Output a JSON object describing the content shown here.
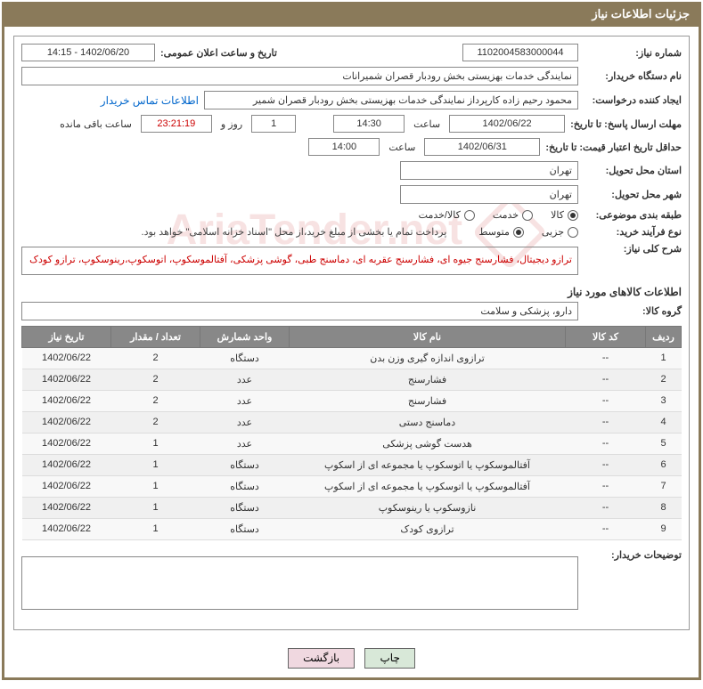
{
  "header": {
    "title": "جزئیات اطلاعات نیاز"
  },
  "labels": {
    "need_number": "شماره نیاز:",
    "announce_datetime": "تاریخ و ساعت اعلان عمومی:",
    "buyer_org": "نام دستگاه خریدار:",
    "requester": "ایجاد کننده درخواست:",
    "contact_link": "اطلاعات تماس خریدار",
    "response_deadline": "مهلت ارسال پاسخ: تا تاریخ:",
    "hour": "ساعت",
    "day_and": "روز و",
    "remaining": "ساعت باقی مانده",
    "price_validity": "حداقل تاریخ اعتبار قیمت: تا تاریخ:",
    "delivery_province": "استان محل تحویل:",
    "delivery_city": "شهر محل تحویل:",
    "category": "طبقه بندی موضوعی:",
    "purchase_process": "نوع فرآیند خرید:",
    "general_desc": "شرح کلی نیاز:",
    "items_info": "اطلاعات کالاهای مورد نیاز",
    "goods_group": "گروه کالا:",
    "buyer_notes": "توضیحات خریدار:"
  },
  "fields": {
    "need_number": "1102004583000044",
    "announce_datetime": "1402/06/20 - 14:15",
    "buyer_org": "نمایندگی خدمات بهزیستی بخش رودبار قصران   شمیرانات",
    "requester": "محمود رحیم زاده کارپرداز نمایندگی خدمات بهزیستی بخش رودبار قصران   شمیر",
    "response_date": "1402/06/22",
    "response_time": "14:30",
    "remaining_days": "1",
    "remaining_time": "23:21:19",
    "price_validity_date": "1402/06/31",
    "price_validity_time": "14:00",
    "delivery_province": "تهران",
    "delivery_city": "تهران",
    "general_desc": "ترازو دیجیتال، فشارسنج جیوه ای، فشارسنج عقربه ای، دماسنج طبی، گوشی پزشکی، آفتالموسکوپ، اتوسکوپ،رینوسکوپ، ترازو کودک",
    "goods_group": "دارو، پزشکی و سلامت",
    "purchase_note": "پرداخت تمام یا بخشی از مبلغ خرید،از محل \"اسناد خزانه اسلامی\" خواهد بود."
  },
  "radios": {
    "category": {
      "options": [
        {
          "label": "کالا",
          "checked": true
        },
        {
          "label": "خدمت",
          "checked": false
        },
        {
          "label": "کالا/خدمت",
          "checked": false
        }
      ]
    },
    "process": {
      "options": [
        {
          "label": "جزیی",
          "checked": false
        },
        {
          "label": "متوسط",
          "checked": true
        }
      ]
    }
  },
  "table": {
    "headers": {
      "row": "ردیف",
      "code": "کد کالا",
      "name": "نام کالا",
      "unit": "واحد شمارش",
      "qty": "تعداد / مقدار",
      "date": "تاریخ نیاز"
    },
    "rows": [
      {
        "n": "1",
        "code": "--",
        "name": "ترازوی اندازه گیری وزن بدن",
        "unit": "دستگاه",
        "qty": "2",
        "date": "1402/06/22"
      },
      {
        "n": "2",
        "code": "--",
        "name": "فشارسنج",
        "unit": "عدد",
        "qty": "2",
        "date": "1402/06/22"
      },
      {
        "n": "3",
        "code": "--",
        "name": "فشارسنج",
        "unit": "عدد",
        "qty": "2",
        "date": "1402/06/22"
      },
      {
        "n": "4",
        "code": "--",
        "name": "دماسنج دستی",
        "unit": "عدد",
        "qty": "2",
        "date": "1402/06/22"
      },
      {
        "n": "5",
        "code": "--",
        "name": "هدست گوشی پزشکی",
        "unit": "عدد",
        "qty": "1",
        "date": "1402/06/22"
      },
      {
        "n": "6",
        "code": "--",
        "name": "آفتالموسکوپ یا اتوسکوپ یا مجموعه ای از اسکوپ",
        "unit": "دستگاه",
        "qty": "1",
        "date": "1402/06/22"
      },
      {
        "n": "7",
        "code": "--",
        "name": "آفتالموسکوپ یا اتوسکوپ یا مجموعه ای از اسکوپ",
        "unit": "دستگاه",
        "qty": "1",
        "date": "1402/06/22"
      },
      {
        "n": "8",
        "code": "--",
        "name": "نازوسکوپ یا رینوسکوپ",
        "unit": "دستگاه",
        "qty": "1",
        "date": "1402/06/22"
      },
      {
        "n": "9",
        "code": "--",
        "name": "ترازوی کودک",
        "unit": "دستگاه",
        "qty": "1",
        "date": "1402/06/22"
      }
    ]
  },
  "buttons": {
    "print": "چاپ",
    "back": "بازگشت"
  },
  "watermark": "AriaTender.net"
}
